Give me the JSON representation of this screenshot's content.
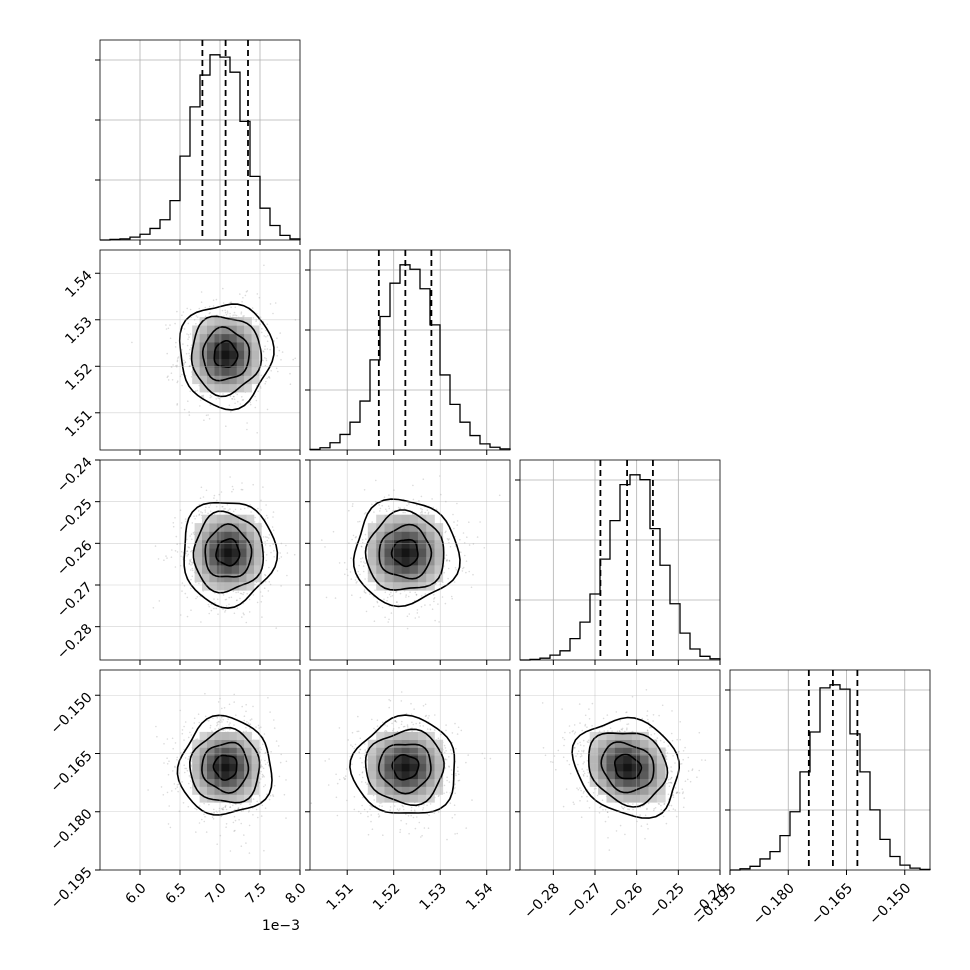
{
  "chart_data": {
    "type": "corner",
    "grid": true,
    "parameters": [
      {
        "range": [
          5.5,
          8.0
        ],
        "ticks": [
          6.0,
          6.5,
          7.0,
          7.5,
          8.0
        ],
        "tick_labels": [
          "6.0",
          "6.5",
          "7.0",
          "7.5",
          "8.0"
        ],
        "offset_text": "1e−3",
        "quantiles": [
          6.78,
          7.07,
          7.35
        ],
        "hist_counts": [
          0,
          1,
          2,
          5,
          10,
          20,
          35,
          68,
          145,
          230,
          285,
          320,
          316,
          290,
          205,
          110,
          55,
          25,
          8,
          2
        ]
      },
      {
        "range": [
          1.502,
          1.545
        ],
        "ticks": [
          1.51,
          1.52,
          1.53,
          1.54
        ],
        "tick_labels": [
          "1.51",
          "1.52",
          "1.53",
          "1.54"
        ],
        "quantiles": [
          1.5168,
          1.5225,
          1.5281
        ],
        "hist_counts": [
          1,
          4,
          13,
          28,
          50,
          88,
          162,
          240,
          300,
          333,
          325,
          290,
          225,
          135,
          82,
          50,
          26,
          11,
          5,
          2
        ]
      },
      {
        "range": [
          -0.288,
          -0.24
        ],
        "ticks": [
          -0.28,
          -0.27,
          -0.26,
          -0.25,
          -0.24
        ],
        "tick_labels": [
          "−0.28",
          "−0.27",
          "−0.26",
          "−0.25",
          "−0.24"
        ],
        "quantiles": [
          -0.2687,
          -0.2623,
          -0.2561
        ],
        "hist_counts": [
          0,
          1,
          3,
          8,
          15,
          35,
          62,
          108,
          165,
          228,
          287,
          303,
          295,
          215,
          155,
          92,
          44,
          18,
          6,
          2
        ]
      },
      {
        "range": [
          -0.195,
          -0.1435
        ],
        "ticks": [
          -0.195,
          -0.18,
          -0.165,
          -0.15
        ],
        "tick_labels": [
          "−0.195",
          "−0.180",
          "−0.165",
          "−0.150"
        ],
        "quantiles": [
          -0.1747,
          -0.1685,
          -0.1622
        ],
        "hist_counts": [
          0,
          2,
          6,
          18,
          30,
          56,
          95,
          160,
          225,
          297,
          302,
          295,
          222,
          160,
          98,
          50,
          22,
          8,
          3,
          1
        ]
      }
    ],
    "scatter_panels": [
      {
        "row": 1,
        "col": 0,
        "mean": [
          7.07,
          1.5225
        ],
        "sd": [
          0.29,
          0.0056
        ],
        "corr": 0.0
      },
      {
        "row": 2,
        "col": 0,
        "mean": [
          7.1,
          -0.2622
        ],
        "sd": [
          0.29,
          0.0063
        ],
        "corr": 0.0
      },
      {
        "row": 2,
        "col": 1,
        "mean": [
          1.5225,
          -0.2622
        ],
        "sd": [
          0.0056,
          0.0063
        ],
        "corr": 0.0
      },
      {
        "row": 3,
        "col": 0,
        "mean": [
          7.07,
          -0.1685
        ],
        "sd": [
          0.29,
          0.0063
        ],
        "corr": 0.0
      },
      {
        "row": 3,
        "col": 1,
        "mean": [
          1.5225,
          -0.1685
        ],
        "sd": [
          0.0056,
          0.0063
        ],
        "corr": 0.0
      },
      {
        "row": 3,
        "col": 2,
        "mean": [
          -0.2622,
          -0.1685
        ],
        "sd": [
          0.0063,
          0.0063
        ],
        "corr": -0.15
      }
    ],
    "colors": {
      "line": "#000000",
      "grid": "#b0b0b0",
      "scatter": "#000000"
    }
  }
}
